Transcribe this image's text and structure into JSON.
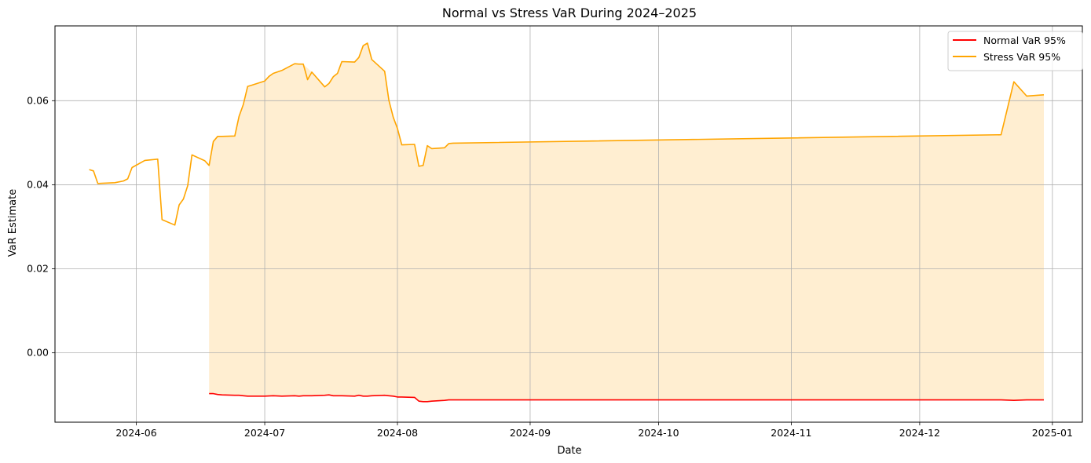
{
  "chart_data": {
    "type": "line",
    "title": "Normal vs Stress VaR During 2024–2025",
    "xlabel": "Date",
    "ylabel": "VaR Estimate",
    "x_ticks": [
      "2024-06",
      "2024-07",
      "2024-08",
      "2024-09",
      "2024-10",
      "2024-11",
      "2024-12",
      "2025-01"
    ],
    "y_ticks": [
      "0.00",
      "0.02",
      "0.04",
      "0.06"
    ],
    "y_tick_values": [
      0.0,
      0.02,
      0.04,
      0.06
    ],
    "xlim": [
      "2024-05-13",
      "2025-01-08"
    ],
    "ylim": [
      -0.0165,
      0.0778
    ],
    "grid": true,
    "legend_position": "top-right",
    "colors": {
      "normal": "#ff0000",
      "stress": "#ffa500",
      "fill": "#ffeccc",
      "grid": "#b0b0b0"
    },
    "series": [
      {
        "name": "Normal VaR 95%",
        "key": "normal",
        "x": [
          "2024-06-18",
          "2024-06-19",
          "2024-06-20",
          "2024-06-21",
          "2024-06-24",
          "2024-06-25",
          "2024-06-26",
          "2024-06-27",
          "2024-06-28",
          "2024-07-01",
          "2024-07-03",
          "2024-07-05",
          "2024-07-08",
          "2024-07-09",
          "2024-07-10",
          "2024-07-12",
          "2024-07-15",
          "2024-07-16",
          "2024-07-17",
          "2024-07-18",
          "2024-07-19",
          "2024-07-22",
          "2024-07-23",
          "2024-07-24",
          "2024-07-25",
          "2024-07-26",
          "2024-07-29",
          "2024-07-30",
          "2024-07-31",
          "2024-08-01",
          "2024-08-02",
          "2024-08-05",
          "2024-08-06",
          "2024-08-07",
          "2024-08-08",
          "2024-08-09",
          "2024-08-12",
          "2024-08-13",
          "2024-08-14",
          "2024-12-20",
          "2024-12-23",
          "2024-12-26",
          "2024-12-30"
        ],
        "values": [
          -0.0097,
          -0.0097,
          -0.0099,
          -0.01,
          -0.0101,
          -0.0101,
          -0.0102,
          -0.0103,
          -0.0103,
          -0.0103,
          -0.0102,
          -0.0103,
          -0.0102,
          -0.0103,
          -0.0102,
          -0.0102,
          -0.0101,
          -0.01,
          -0.0102,
          -0.0102,
          -0.0102,
          -0.0103,
          -0.0101,
          -0.0103,
          -0.0103,
          -0.0102,
          -0.0101,
          -0.0102,
          -0.0103,
          -0.0105,
          -0.0105,
          -0.0106,
          -0.0115,
          -0.0116,
          -0.0116,
          -0.0115,
          -0.0113,
          -0.0112,
          -0.0112,
          -0.0112,
          -0.0113,
          -0.0112,
          -0.0112
        ]
      },
      {
        "name": "Stress VaR 95%",
        "key": "stress",
        "x": [
          "2024-05-21",
          "2024-05-22",
          "2024-05-23",
          "2024-05-27",
          "2024-05-29",
          "2024-05-30",
          "2024-05-31",
          "2024-06-03",
          "2024-06-06",
          "2024-06-07",
          "2024-06-10",
          "2024-06-11",
          "2024-06-12",
          "2024-06-13",
          "2024-06-14",
          "2024-06-17",
          "2024-06-18",
          "2024-06-19",
          "2024-06-20",
          "2024-06-21",
          "2024-06-24",
          "2024-06-25",
          "2024-06-26",
          "2024-06-27",
          "2024-06-28",
          "2024-07-01",
          "2024-07-02",
          "2024-07-03",
          "2024-07-05",
          "2024-07-08",
          "2024-07-09",
          "2024-07-10",
          "2024-07-11",
          "2024-07-12",
          "2024-07-15",
          "2024-07-16",
          "2024-07-17",
          "2024-07-18",
          "2024-07-19",
          "2024-07-22",
          "2024-07-23",
          "2024-07-24",
          "2024-07-25",
          "2024-07-26",
          "2024-07-29",
          "2024-07-30",
          "2024-07-31",
          "2024-08-01",
          "2024-08-02",
          "2024-08-05",
          "2024-08-06",
          "2024-08-07",
          "2024-08-08",
          "2024-08-09",
          "2024-08-12",
          "2024-08-13",
          "2024-08-14",
          "2024-12-20",
          "2024-12-23",
          "2024-12-26",
          "2024-12-30"
        ],
        "values": [
          0.0436,
          0.0433,
          0.0403,
          0.0405,
          0.0409,
          0.0414,
          0.0441,
          0.0458,
          0.0461,
          0.0317,
          0.0304,
          0.0352,
          0.0366,
          0.0398,
          0.0471,
          0.0457,
          0.0446,
          0.0503,
          0.0515,
          0.0515,
          0.0516,
          0.0563,
          0.0591,
          0.0634,
          0.0637,
          0.0647,
          0.0658,
          0.0665,
          0.0672,
          0.0688,
          0.0687,
          0.0687,
          0.065,
          0.0668,
          0.0633,
          0.0641,
          0.0657,
          0.0665,
          0.0693,
          0.0692,
          0.0703,
          0.0731,
          0.0737,
          0.0698,
          0.067,
          0.0601,
          0.0561,
          0.0534,
          0.0495,
          0.0496,
          0.0444,
          0.0446,
          0.0493,
          0.0486,
          0.0488,
          0.0498,
          0.0499,
          0.0519,
          0.0645,
          0.0611,
          0.0614
        ]
      }
    ]
  }
}
